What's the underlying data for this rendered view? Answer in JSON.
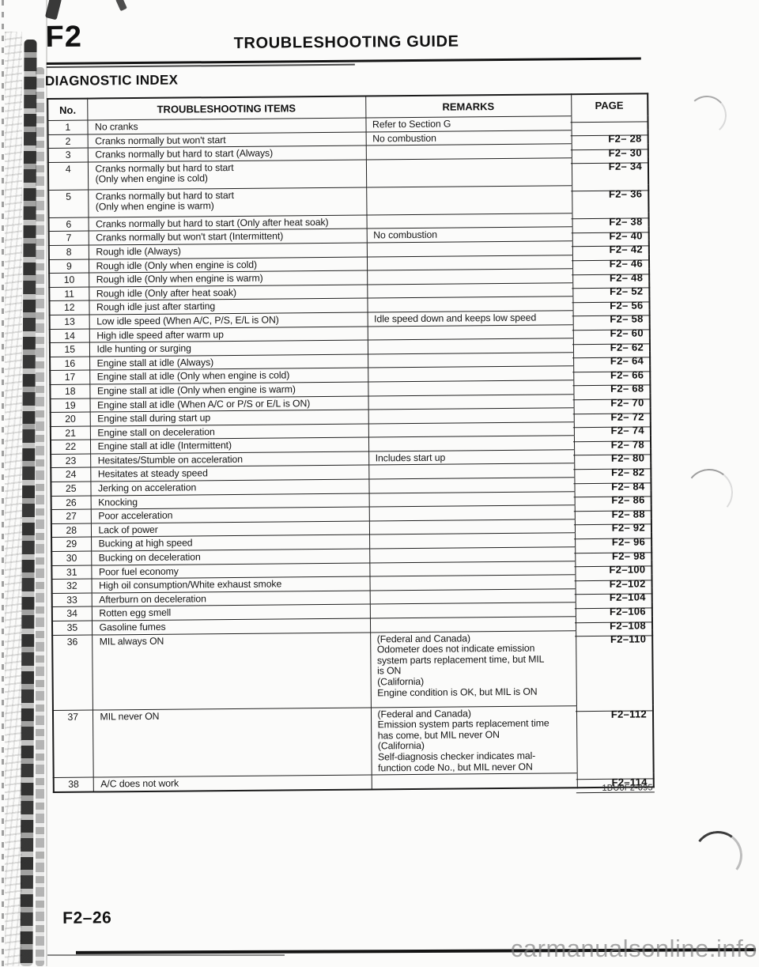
{
  "header": {
    "section_code": "F2",
    "title": "TROUBLESHOOTING GUIDE",
    "subtitle": "DIAGNOSTIC INDEX"
  },
  "table": {
    "headers": [
      "No.",
      "TROUBLESHOOTING ITEMS",
      "REMARKS",
      "PAGE"
    ],
    "rows": [
      {
        "no": "1",
        "item": "No cranks",
        "remarks": "Refer to Section G",
        "page": "",
        "h": "s"
      },
      {
        "no": "2",
        "item": "Cranks normally but won't start",
        "remarks": "No combustion",
        "page": "F2– 28",
        "h": "s"
      },
      {
        "no": "3",
        "item": "Cranks normally but hard to start (Always)",
        "remarks": "",
        "page": "F2– 30",
        "h": "s"
      },
      {
        "no": "4",
        "item": "Cranks normally but hard to start\n(Only when engine is cold)",
        "remarks": "",
        "page": "F2– 34",
        "h": "d"
      },
      {
        "no": "5",
        "item": "Cranks normally but hard to start\n(Only when engine is warm)",
        "remarks": "",
        "page": "F2– 36",
        "h": "d"
      },
      {
        "no": "6",
        "item": "Cranks normally but hard to start (Only after heat soak)",
        "remarks": "",
        "page": "F2– 38",
        "h": "s"
      },
      {
        "no": "7",
        "item": "Cranks normally but won't start (Intermittent)",
        "remarks": "No combustion",
        "page": "F2– 40",
        "h": "s"
      },
      {
        "no": "8",
        "item": "Rough idle (Always)",
        "remarks": "",
        "page": "F2– 42",
        "h": "s"
      },
      {
        "no": "9",
        "item": "Rough idle (Only when engine is cold)",
        "remarks": "",
        "page": "F2– 46",
        "h": "s"
      },
      {
        "no": "10",
        "item": "Rough idle (Only when engine is warm)",
        "remarks": "",
        "page": "F2– 48",
        "h": "s"
      },
      {
        "no": "11",
        "item": "Rough idle (Only after heat soak)",
        "remarks": "",
        "page": "F2– 52",
        "h": "s"
      },
      {
        "no": "12",
        "item": "Rough idle just after starting",
        "remarks": "",
        "page": "F2– 56",
        "h": "s"
      },
      {
        "no": "13",
        "item": "Low idle speed (When A/C, P/S, E/L is ON)",
        "remarks": "Idle speed down and keeps low speed",
        "page": "F2– 58",
        "h": "s"
      },
      {
        "no": "14",
        "item": "High idle speed after warm up",
        "remarks": "",
        "page": "F2– 60",
        "h": "s"
      },
      {
        "no": "15",
        "item": "Idle hunting or surging",
        "remarks": "",
        "page": "F2– 62",
        "h": "s"
      },
      {
        "no": "16",
        "item": "Engine stall at idle (Always)",
        "remarks": "",
        "page": "F2– 64",
        "h": "s"
      },
      {
        "no": "17",
        "item": "Engine stall at idle (Only when engine is cold)",
        "remarks": "",
        "page": "F2– 66",
        "h": "s"
      },
      {
        "no": "18",
        "item": "Engine stall at idle (Only when engine is warm)",
        "remarks": "",
        "page": "F2– 68",
        "h": "s"
      },
      {
        "no": "19",
        "item": "Engine stall at idle (When A/C or P/S or E/L is ON)",
        "remarks": "",
        "page": "F2– 70",
        "h": "s"
      },
      {
        "no": "20",
        "item": "Engine stall during start up",
        "remarks": "",
        "page": "F2– 72",
        "h": "s"
      },
      {
        "no": "21",
        "item": "Engine stall on deceleration",
        "remarks": "",
        "page": "F2– 74",
        "h": "s"
      },
      {
        "no": "22",
        "item": "Engine stall at idle (Intermittent)",
        "remarks": "",
        "page": "F2– 78",
        "h": "s"
      },
      {
        "no": "23",
        "item": "Hesitates/Stumble on acceleration",
        "remarks": "Includes start up",
        "page": "F2– 80",
        "h": "s"
      },
      {
        "no": "24",
        "item": "Hesitates at steady speed",
        "remarks": "",
        "page": "F2– 82",
        "h": "s"
      },
      {
        "no": "25",
        "item": "Jerking on acceleration",
        "remarks": "",
        "page": "F2– 84",
        "h": "s"
      },
      {
        "no": "26",
        "item": "Knocking",
        "remarks": "",
        "page": "F2– 86",
        "h": "s"
      },
      {
        "no": "27",
        "item": "Poor acceleration",
        "remarks": "",
        "page": "F2– 88",
        "h": "s"
      },
      {
        "no": "28",
        "item": "Lack of power",
        "remarks": "",
        "page": "F2– 92",
        "h": "s"
      },
      {
        "no": "29",
        "item": "Bucking at high speed",
        "remarks": "",
        "page": "F2– 96",
        "h": "s"
      },
      {
        "no": "30",
        "item": "Bucking on deceleration",
        "remarks": "",
        "page": "F2– 98",
        "h": "s"
      },
      {
        "no": "31",
        "item": "Poor fuel economy",
        "remarks": "",
        "page": "F2–100",
        "h": "s"
      },
      {
        "no": "32",
        "item": "High oil consumption/White exhaust smoke",
        "remarks": "",
        "page": "F2–102",
        "h": "s"
      },
      {
        "no": "33",
        "item": "Afterburn on deceleration",
        "remarks": "",
        "page": "F2–104",
        "h": "s"
      },
      {
        "no": "34",
        "item": "Rotten egg smell",
        "remarks": "",
        "page": "F2–106",
        "h": "s"
      },
      {
        "no": "35",
        "item": "Gasoline fumes",
        "remarks": "",
        "page": "F2–108",
        "h": "s"
      },
      {
        "no": "36",
        "item": "MIL always ON",
        "remarks": "(Federal and Canada)\nOdometer does not indicate emission\nsystem parts replacement time, but MIL\nis ON\n(California)\nEngine condition is OK, but MIL is ON",
        "page": "F2–110",
        "h": "t36"
      },
      {
        "no": "37",
        "item": "MIL never ON",
        "remarks": "(Federal and Canada)\nEmission system parts replacement time\nhas come, but MIL never ON\n(California)\nSelf-diagnosis checker indicates mal-\nfunction code No., but MIL never ON",
        "page": "F2–112",
        "h": "t37"
      },
      {
        "no": "38",
        "item": "A/C does not work",
        "remarks": "",
        "page": "F2–114",
        "h": "s"
      }
    ]
  },
  "footer": {
    "page_number": "F2–26",
    "doc_code": "1BU0F2-095",
    "watermark": "carmanualsonline.info"
  },
  "colors": {
    "ink": "#1a1a1a",
    "watermark_gray": "#7f7f7f"
  }
}
